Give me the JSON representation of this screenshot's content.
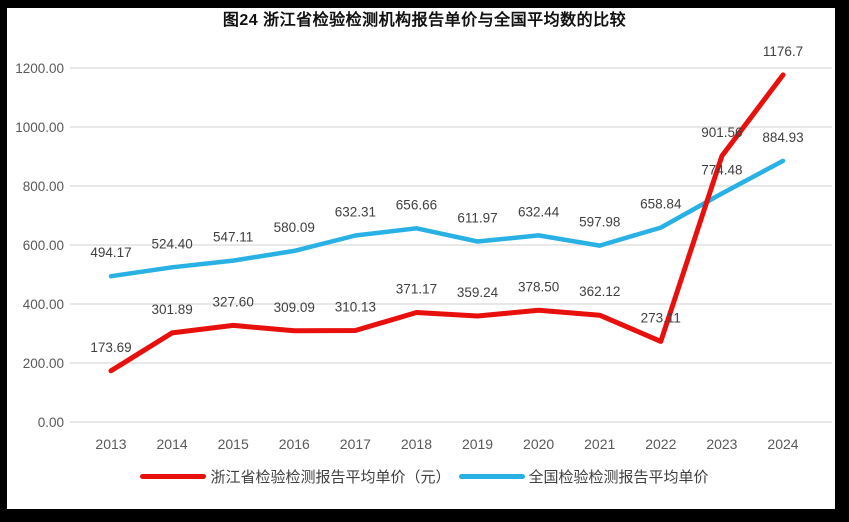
{
  "chart_data": {
    "type": "line",
    "title": "图24  浙江省检验检测机构报告单价与全国平均数的比较",
    "categories": [
      "2013",
      "2014",
      "2015",
      "2016",
      "2017",
      "2018",
      "2019",
      "2020",
      "2021",
      "2022",
      "2023",
      "2024"
    ],
    "series": [
      {
        "name": "全国检验检测报告平均单价",
        "color": "#29b0e4",
        "values": [
          494.17,
          524.4,
          547.11,
          580.09,
          632.31,
          656.66,
          611.97,
          632.44,
          597.98,
          658.84,
          774.48,
          884.93
        ],
        "labels": [
          "494.17",
          "524.40",
          "547.11",
          "580.09",
          "632.31",
          "656.66",
          "611.97",
          "632.44",
          "597.98",
          "658.84",
          "774.48",
          "884.93"
        ]
      },
      {
        "name": "浙江省检验检测报告平均单价（元）",
        "color": "#e8100c",
        "values": [
          173.69,
          301.89,
          327.6,
          309.09,
          310.13,
          371.17,
          359.24,
          378.5,
          362.12,
          273.11,
          901.56,
          1176.7
        ],
        "labels": [
          "173.69",
          "301.89",
          "327.60",
          "309.09",
          "310.13",
          "371.17",
          "359.24",
          "378.50",
          "362.12",
          "273.11",
          "901.56",
          "1176.7"
        ]
      }
    ],
    "y_ticks": [
      "1200.00",
      "1000.00",
      "800.00",
      "600.00",
      "400.00",
      "200.00",
      "0.00"
    ],
    "ylim": [
      0,
      1200
    ],
    "grid": true,
    "legend_position": "bottom",
    "colors": {
      "gridline": "#d9d9d9",
      "tick_text": "#595959",
      "data_label_text": "#404040"
    }
  },
  "legend": {
    "items": [
      {
        "label": "浙江省检验检测报告平均单价（元）",
        "color": "#e8100c"
      },
      {
        "label": "全国检验检测报告平均单价",
        "color": "#29b0e4"
      }
    ]
  }
}
